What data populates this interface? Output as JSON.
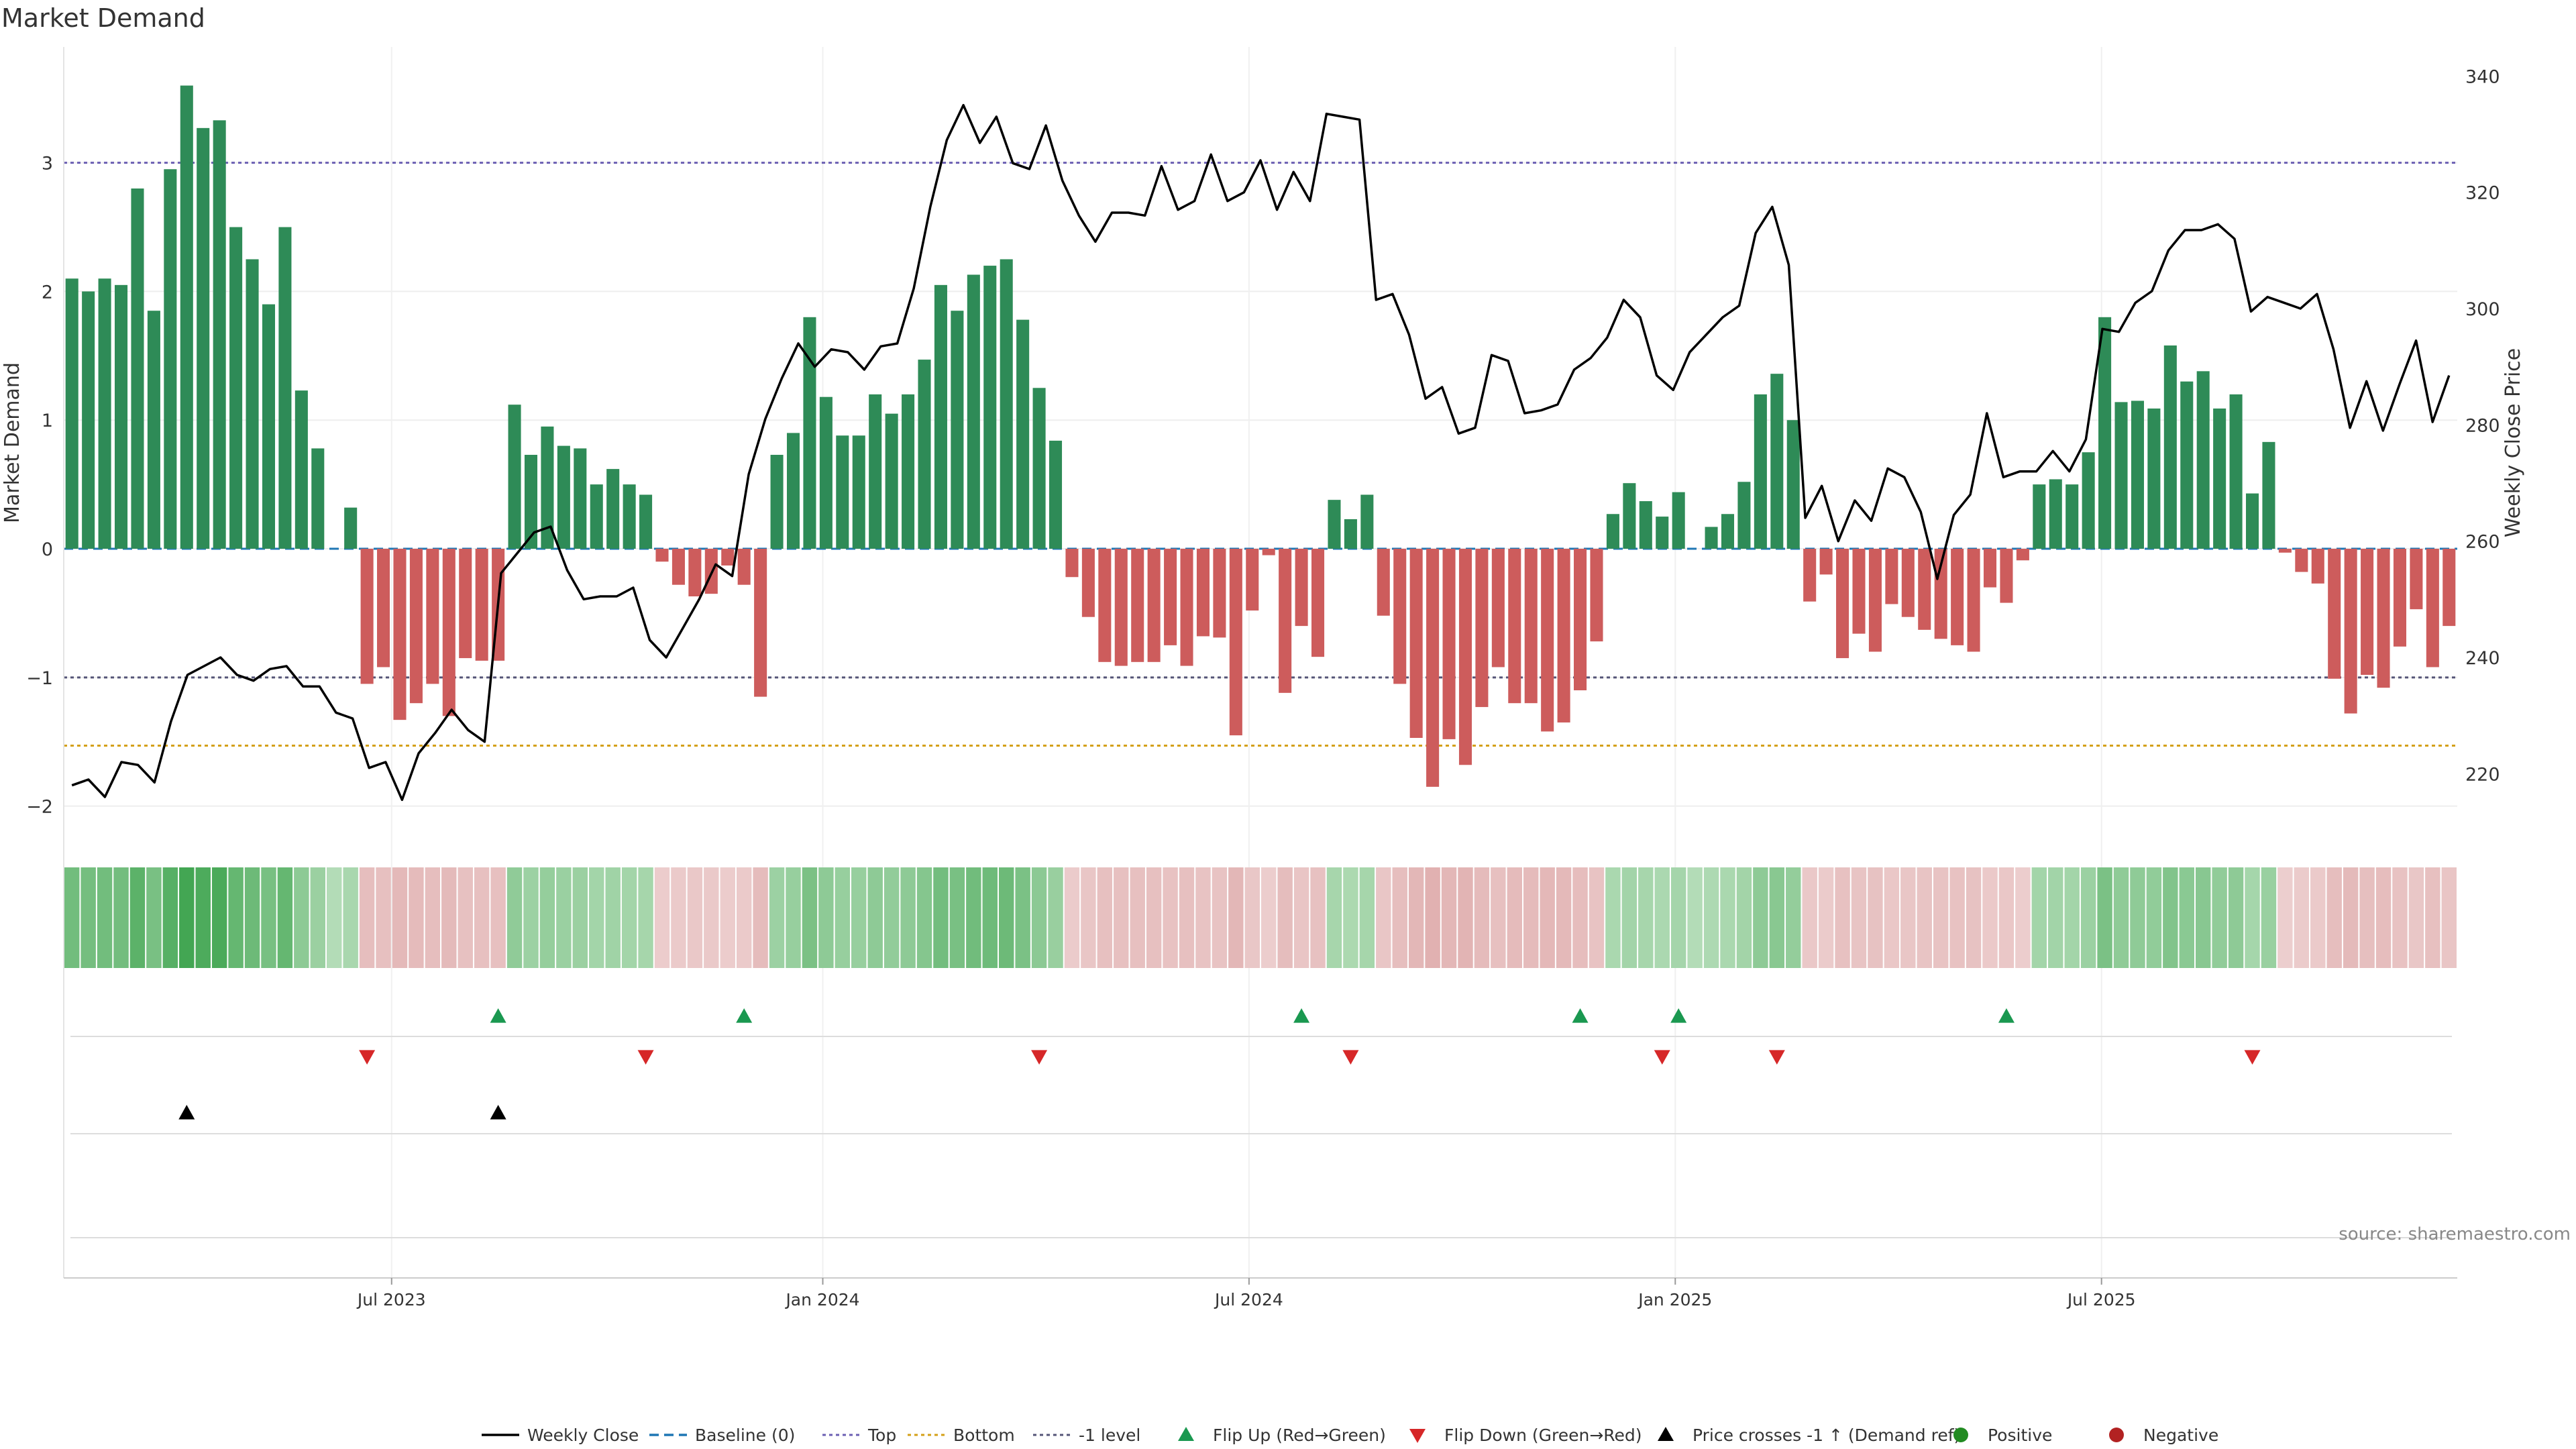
{
  "chart_data": {
    "type": "bar",
    "title": "Market Demand",
    "ylabel": "Market Demand",
    "y2label": "Weekly Close Price",
    "source": "source: sharemaestro.com",
    "ylim": [
      -2.2,
      3.9
    ],
    "y2lim": [
      210,
      345
    ],
    "yticks": [
      -2,
      -1,
      0,
      1,
      2,
      3
    ],
    "y2ticks": [
      220,
      240,
      260,
      280,
      300,
      320,
      340
    ],
    "yticks_labels": [
      "−2",
      "−1",
      "0",
      "1",
      "2",
      "3"
    ],
    "y2ticks_labels": [
      "220",
      "240",
      "260",
      "280",
      "300",
      "320",
      "340"
    ],
    "xticks_labels": [
      "Jul 2023",
      "Jan 2024",
      "Jul 2024",
      "Jan 2025",
      "Jul 2025"
    ],
    "xticks_pos": [
      20,
      46.3,
      72.3,
      98.3,
      124.3
    ],
    "levels": {
      "top": 3,
      "bottom": -1.53,
      "minus_one": -1
    },
    "demand": [
      2.1,
      2.0,
      2.1,
      2.05,
      2.8,
      1.85,
      2.95,
      3.6,
      3.27,
      3.33,
      2.5,
      2.25,
      1.9,
      2.5,
      1.23,
      0.78,
      0,
      0.32,
      -1.05,
      -0.92,
      -1.33,
      -1.2,
      -1.05,
      -1.3,
      -0.85,
      -0.87,
      -0.87,
      1.12,
      0.73,
      0.95,
      0.8,
      0.78,
      0.5,
      0.62,
      0.5,
      0.42,
      -0.1,
      -0.28,
      -0.37,
      -0.35,
      -0.13,
      -0.28,
      -1.15,
      0.73,
      0.9,
      1.8,
      1.18,
      0.88,
      0.88,
      1.2,
      1.05,
      1.2,
      1.47,
      2.05,
      1.85,
      2.13,
      2.2,
      2.25,
      1.78,
      1.25,
      0.84,
      -0.22,
      -0.53,
      -0.88,
      -0.91,
      -0.88,
      -0.88,
      -0.75,
      -0.91,
      -0.68,
      -0.69,
      -1.45,
      -0.48,
      -0.05,
      -1.12,
      -0.6,
      -0.84,
      0.38,
      0.23,
      0.42,
      -0.52,
      -1.05,
      -1.47,
      -1.85,
      -1.48,
      -1.68,
      -1.23,
      -0.92,
      -1.2,
      -1.2,
      -1.42,
      -1.35,
      -1.1,
      -0.72,
      0.27,
      0.51,
      0.37,
      0.25,
      0.44,
      0,
      0.17,
      0.27,
      0.52,
      1.2,
      1.36,
      1.0,
      -0.41,
      -0.2,
      -0.85,
      -0.66,
      -0.8,
      -0.43,
      -0.53,
      -0.63,
      -0.7,
      -0.75,
      -0.8,
      -0.3,
      -0.42,
      -0.09,
      0.5,
      0.54,
      0.5,
      0.75,
      1.8,
      1.14,
      1.15,
      1.09,
      1.58,
      1.3,
      1.38,
      1.09,
      1.2,
      0.43,
      0.83,
      -0.03,
      -0.18,
      -0.27,
      -1.01,
      -1.28,
      -0.98,
      -1.08,
      -0.76,
      -0.47,
      -0.92,
      -0.6
    ],
    "price": [
      218,
      219,
      216,
      222,
      221.5,
      218.5,
      229,
      237,
      238.5,
      240,
      237,
      236,
      238,
      238.5,
      235,
      235,
      230.5,
      229.5,
      221,
      222,
      215.5,
      223.5,
      227,
      231,
      227.5,
      225.5,
      254.5,
      258,
      261.5,
      262.5,
      255,
      250,
      250.5,
      250.5,
      252,
      243,
      240,
      245,
      250,
      256,
      254,
      271.5,
      281,
      288,
      294,
      290,
      293,
      292.5,
      289.5,
      293.5,
      294,
      303.5,
      317.5,
      329,
      335,
      328.5,
      333,
      325,
      324,
      331.5,
      322,
      316,
      311.5,
      316.5,
      316.5,
      316,
      324.5,
      317,
      318.5,
      326.5,
      318.5,
      320,
      325.5,
      317,
      323.5,
      318.5,
      333.5,
      333,
      332.5,
      301.5,
      302.5,
      295.5,
      284.5,
      286.5,
      278.5,
      279.5,
      292,
      291,
      282,
      282.5,
      283.5,
      289.5,
      291.5,
      295,
      301.5,
      298.5,
      288.5,
      286,
      292.5,
      295.5,
      298.5,
      300.5,
      313,
      317.5,
      307.5,
      264,
      269.5,
      260,
      267,
      263.5,
      272.5,
      271,
      265,
      253.5,
      264.5,
      268,
      282,
      271,
      272,
      272,
      275.5,
      272,
      277.5,
      296.5,
      296,
      301,
      303,
      310,
      313.5,
      313.5,
      314.5,
      312,
      299.5,
      302,
      301,
      300,
      302.5,
      293,
      279.5,
      287.5,
      279,
      287,
      294.5,
      280.5,
      288.5
    ],
    "flip_up_idx": [
      26,
      41,
      75,
      92,
      98,
      118
    ],
    "flip_down_idx": [
      18,
      35,
      59,
      78,
      97,
      104,
      133
    ],
    "cross_idx": [
      7,
      26
    ],
    "legend": [
      "Weekly Close",
      "Baseline (0)",
      "Top",
      "Bottom",
      "-1 level",
      "Flip Up (Red→Green)",
      "Flip Down (Green→Red)",
      "Price crosses -1 ↑ (Demand ref)",
      "Positive",
      "Negative"
    ],
    "colors": {
      "positive": "#2e8b57",
      "negative": "#cd5c5c",
      "price": "#000000",
      "baseline": "#1f77b4",
      "top": "#6b5fb3",
      "bottom": "#d4a017",
      "minus_one": "#555577",
      "flip_up": "#1a9850",
      "flip_down": "#d62728",
      "cross": "#000000",
      "legend_pos": "#228b22",
      "legend_neg": "#b22222"
    }
  }
}
